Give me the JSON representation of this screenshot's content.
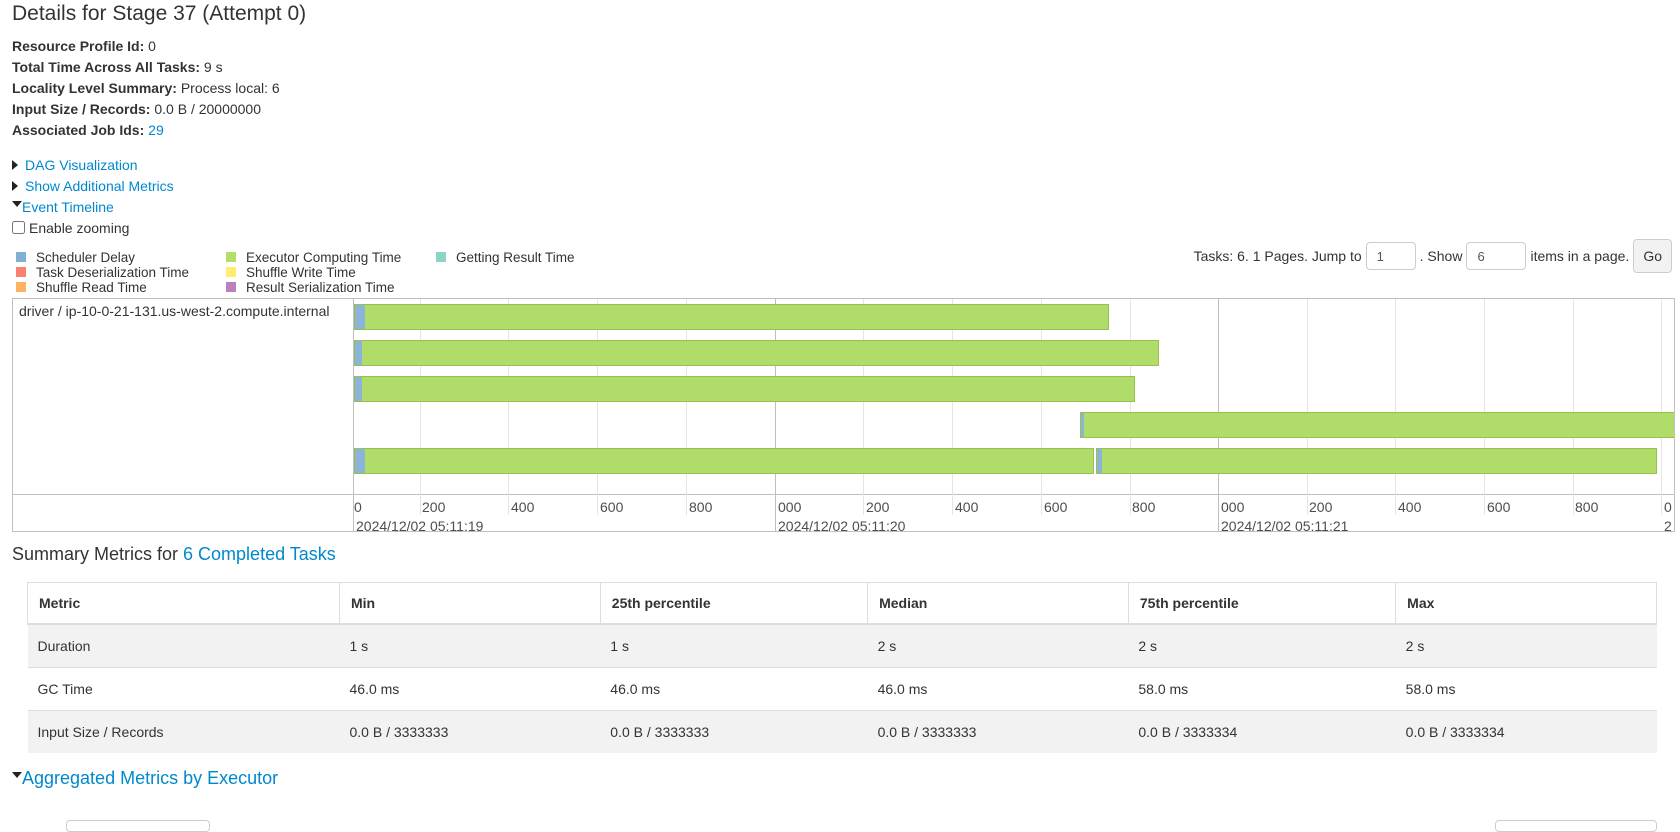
{
  "page": {
    "title": "Details for Stage 37 (Attempt 0)"
  },
  "summary": {
    "resource_profile_label": "Resource Profile Id:",
    "resource_profile_value": "0",
    "total_time_label": "Total Time Across All Tasks:",
    "total_time_value": "9 s",
    "locality_label": "Locality Level Summary:",
    "locality_value": "Process local: 6",
    "input_label": "Input Size / Records:",
    "input_value": "0.0 B / 20000000",
    "job_ids_label": "Associated Job Ids:",
    "job_ids_value": "29"
  },
  "toggles": {
    "dag": "DAG Visualization",
    "additional_metrics": "Show Additional Metrics",
    "event_timeline": "Event Timeline",
    "enable_zooming": "Enable zooming"
  },
  "legend": [
    {
      "label": "Scheduler Delay",
      "color": "#80b1d3"
    },
    {
      "label": "Task Deserialization Time",
      "color": "#fb8072"
    },
    {
      "label": "Shuffle Read Time",
      "color": "#fdb462"
    },
    {
      "label": "Executor Computing Time",
      "color": "#b3de69"
    },
    {
      "label": "Shuffle Write Time",
      "color": "#ffed6f"
    },
    {
      "label": "Result Serialization Time",
      "color": "#bc80bd"
    },
    {
      "label": "Getting Result Time",
      "color": "#8dd3c7"
    }
  ],
  "pager": {
    "tasks_text": "Tasks: 6. 1 Pages. Jump to",
    "jump_value": "1",
    "show_text": ". Show",
    "show_value": "6",
    "items_text": "items in a page.",
    "go": "Go"
  },
  "timeline": {
    "host": "driver / ip-10-0-21-131.us-west-2.compute.internal",
    "major_labels": [
      "2024/12/02 05:11:19",
      "2024/12/02 05:11:20",
      "2024/12/02 05:11:21"
    ],
    "minor_ticks": [
      "0",
      "200",
      "400",
      "600",
      "800",
      "000",
      "200",
      "400",
      "600",
      "800",
      "000",
      "200",
      "400",
      "600",
      "800",
      "0"
    ],
    "tail_major": "2"
  },
  "metrics": {
    "section_prefix": "Summary Metrics for ",
    "section_link": "6 Completed Tasks",
    "headers": [
      "Metric",
      "Min",
      "25th percentile",
      "Median",
      "75th percentile",
      "Max"
    ],
    "rows": [
      [
        "Duration",
        "1 s",
        "1 s",
        "2 s",
        "2 s",
        "2 s"
      ],
      [
        "GC Time",
        "46.0 ms",
        "46.0 ms",
        "46.0 ms",
        "58.0 ms",
        "58.0 ms"
      ],
      [
        "Input Size / Records",
        "0.0 B / 3333333",
        "0.0 B / 3333333",
        "0.0 B / 3333333",
        "0.0 B / 3333334",
        "0.0 B / 3333334"
      ]
    ]
  },
  "aggregated": {
    "title": "Aggregated Metrics by Executor"
  }
}
